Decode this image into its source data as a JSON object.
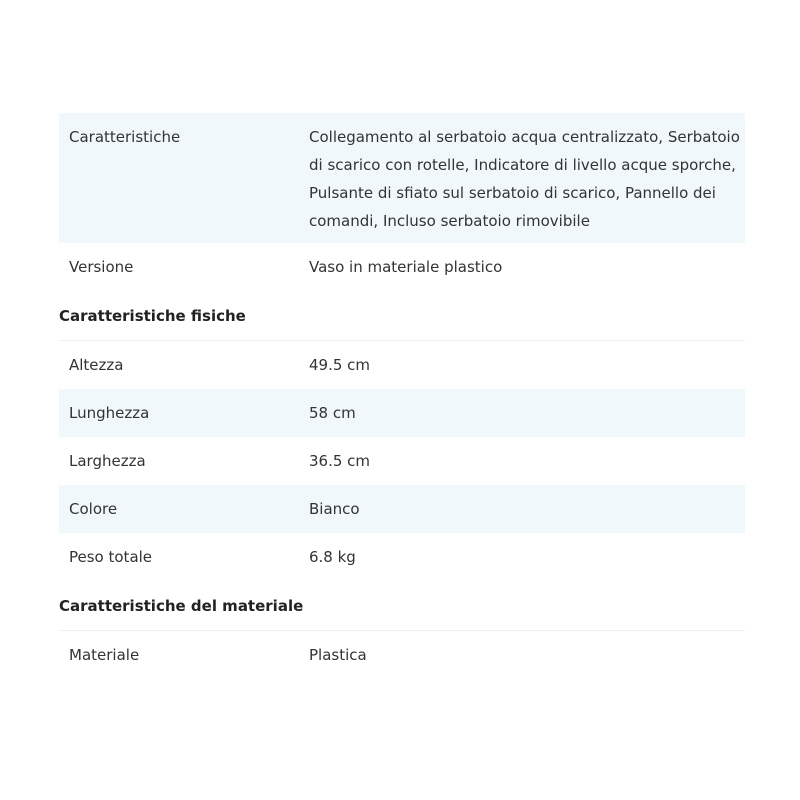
{
  "sections": [
    {
      "title": "",
      "rows": [
        {
          "label": "Caratteristiche",
          "value": "Collegamento al serbatoio acqua centralizzato, Serbatoio di scarico con rotelle, Indicatore di livello acque sporche, Pulsante di sfiato sul serbatoio di scarico, Pannello dei comandi, Incluso serbatoio rimovibile"
        },
        {
          "label": "Versione",
          "value": "Vaso in materiale plastico"
        }
      ]
    },
    {
      "title": "Caratteristiche fisiche",
      "rows": [
        {
          "label": "Altezza",
          "value": "49.5 cm"
        },
        {
          "label": "Lunghezza",
          "value": "58 cm"
        },
        {
          "label": "Larghezza",
          "value": "36.5 cm"
        },
        {
          "label": "Colore",
          "value": "Bianco"
        },
        {
          "label": "Peso totale",
          "value": "6.8 kg"
        }
      ]
    },
    {
      "title": "Caratteristiche del materiale",
      "rows": [
        {
          "label": "Materiale",
          "value": "Plastica"
        }
      ]
    }
  ],
  "colors": {
    "row_shade": "#f1f8fc",
    "text": "#333333"
  }
}
